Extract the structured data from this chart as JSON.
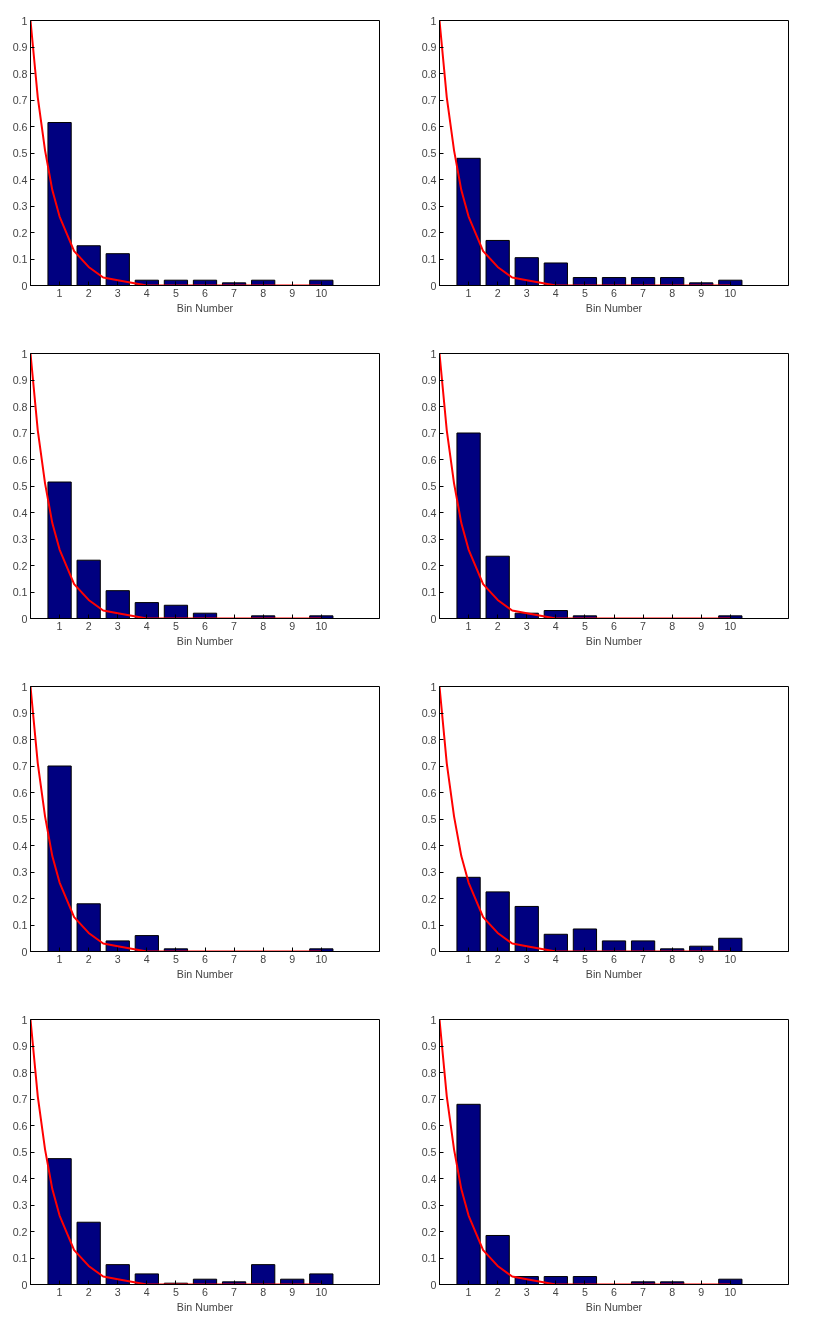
{
  "chart_data": [
    {
      "type": "bar",
      "xlabel": "Bin Number",
      "x": [
        1,
        2,
        3,
        4,
        5,
        6,
        7,
        8,
        9,
        10
      ],
      "xlim": [
        0,
        12
      ],
      "xticks": [
        1,
        2,
        3,
        4,
        5,
        6,
        7,
        8,
        9,
        10
      ],
      "ylim": [
        0,
        1
      ],
      "yticks": [
        0,
        0.1,
        0.2,
        0.3,
        0.4,
        0.5,
        0.6,
        0.7,
        0.8,
        0.9,
        1
      ],
      "series": [
        {
          "color": "#000080",
          "values": [
            0.615,
            0.15,
            0.12,
            0.02,
            0.02,
            0.02,
            0.01,
            0.02,
            0,
            0.02
          ]
        },
        {
          "type": "line",
          "color": "#ff0000",
          "x": [
            0,
            0.25,
            0.5,
            0.75,
            1,
            1.5,
            2,
            2.5,
            3,
            4,
            5,
            6,
            8,
            10
          ],
          "values": [
            1,
            0.71,
            0.51,
            0.36,
            0.26,
            0.13,
            0.07,
            0.03,
            0.02,
            0,
            0,
            0,
            0,
            0
          ]
        }
      ]
    },
    {
      "type": "bar",
      "xlabel": "Bin Number",
      "x": [
        1,
        2,
        3,
        4,
        5,
        6,
        7,
        8,
        9,
        10
      ],
      "xlim": [
        0,
        12
      ],
      "xticks": [
        1,
        2,
        3,
        4,
        5,
        6,
        7,
        8,
        9,
        10
      ],
      "ylim": [
        0,
        1
      ],
      "yticks": [
        0,
        0.1,
        0.2,
        0.3,
        0.4,
        0.5,
        0.6,
        0.7,
        0.8,
        0.9,
        1
      ],
      "series": [
        {
          "color": "#000080",
          "values": [
            0.48,
            0.17,
            0.105,
            0.085,
            0.03,
            0.03,
            0.03,
            0.03,
            0.01,
            0.02
          ]
        },
        {
          "type": "line",
          "color": "#ff0000",
          "x": [
            0,
            0.25,
            0.5,
            0.75,
            1,
            1.5,
            2,
            2.5,
            3,
            4,
            5,
            6,
            8,
            10
          ],
          "values": [
            1,
            0.71,
            0.51,
            0.36,
            0.26,
            0.13,
            0.07,
            0.03,
            0.02,
            0,
            0,
            0,
            0,
            0
          ]
        }
      ]
    },
    {
      "type": "bar",
      "xlabel": "Bin Number",
      "x": [
        1,
        2,
        3,
        4,
        5,
        6,
        7,
        8,
        9,
        10
      ],
      "xlim": [
        0,
        12
      ],
      "xticks": [
        1,
        2,
        3,
        4,
        5,
        6,
        7,
        8,
        9,
        10
      ],
      "ylim": [
        0,
        1
      ],
      "yticks": [
        0,
        0.1,
        0.2,
        0.3,
        0.4,
        0.5,
        0.6,
        0.7,
        0.8,
        0.9,
        1
      ],
      "series": [
        {
          "color": "#000080",
          "values": [
            0.515,
            0.22,
            0.105,
            0.06,
            0.05,
            0.02,
            0,
            0.01,
            0,
            0.01
          ]
        },
        {
          "type": "line",
          "color": "#ff0000",
          "x": [
            0,
            0.25,
            0.5,
            0.75,
            1,
            1.5,
            2,
            2.5,
            3,
            4,
            5,
            6,
            8,
            10
          ],
          "values": [
            1,
            0.71,
            0.51,
            0.36,
            0.26,
            0.13,
            0.07,
            0.03,
            0.02,
            0,
            0,
            0,
            0,
            0
          ]
        }
      ]
    },
    {
      "type": "bar",
      "xlabel": "Bin Number",
      "x": [
        1,
        2,
        3,
        4,
        5,
        6,
        7,
        8,
        9,
        10
      ],
      "xlim": [
        0,
        12
      ],
      "xticks": [
        1,
        2,
        3,
        4,
        5,
        6,
        7,
        8,
        9,
        10
      ],
      "ylim": [
        0,
        1
      ],
      "yticks": [
        0,
        0.1,
        0.2,
        0.3,
        0.4,
        0.5,
        0.6,
        0.7,
        0.8,
        0.9,
        1
      ],
      "series": [
        {
          "color": "#000080",
          "values": [
            0.7,
            0.235,
            0.02,
            0.03,
            0.01,
            0,
            0,
            0,
            0,
            0.01
          ]
        },
        {
          "type": "line",
          "color": "#ff0000",
          "x": [
            0,
            0.25,
            0.5,
            0.75,
            1,
            1.5,
            2,
            2.5,
            3,
            4,
            5,
            6,
            8,
            10
          ],
          "values": [
            1,
            0.71,
            0.51,
            0.36,
            0.26,
            0.13,
            0.07,
            0.03,
            0.02,
            0,
            0,
            0,
            0,
            0
          ]
        }
      ]
    },
    {
      "type": "bar",
      "xlabel": "Bin Number",
      "x": [
        1,
        2,
        3,
        4,
        5,
        6,
        7,
        8,
        9,
        10
      ],
      "xlim": [
        0,
        12
      ],
      "xticks": [
        1,
        2,
        3,
        4,
        5,
        6,
        7,
        8,
        9,
        10
      ],
      "ylim": [
        0,
        1
      ],
      "yticks": [
        0,
        0.1,
        0.2,
        0.3,
        0.4,
        0.5,
        0.6,
        0.7,
        0.8,
        0.9,
        1
      ],
      "series": [
        {
          "color": "#000080",
          "values": [
            0.7,
            0.18,
            0.04,
            0.06,
            0.01,
            0,
            0,
            0,
            0,
            0.01
          ]
        },
        {
          "type": "line",
          "color": "#ff0000",
          "x": [
            0,
            0.25,
            0.5,
            0.75,
            1,
            1.5,
            2,
            2.5,
            3,
            4,
            5,
            6,
            8,
            10
          ],
          "values": [
            1,
            0.71,
            0.51,
            0.36,
            0.26,
            0.13,
            0.07,
            0.03,
            0.02,
            0,
            0,
            0,
            0,
            0
          ]
        }
      ]
    },
    {
      "type": "bar",
      "xlabel": "Bin Number",
      "x": [
        1,
        2,
        3,
        4,
        5,
        6,
        7,
        8,
        9,
        10
      ],
      "xlim": [
        0,
        12
      ],
      "xticks": [
        1,
        2,
        3,
        4,
        5,
        6,
        7,
        8,
        9,
        10
      ],
      "ylim": [
        0,
        1
      ],
      "yticks": [
        0,
        0.1,
        0.2,
        0.3,
        0.4,
        0.5,
        0.6,
        0.7,
        0.8,
        0.9,
        1
      ],
      "series": [
        {
          "color": "#000080",
          "values": [
            0.28,
            0.225,
            0.17,
            0.065,
            0.085,
            0.04,
            0.04,
            0.01,
            0.02,
            0.05
          ]
        },
        {
          "type": "line",
          "color": "#ff0000",
          "x": [
            0,
            0.25,
            0.5,
            0.75,
            1,
            1.5,
            2,
            2.5,
            3,
            4,
            5,
            6,
            8,
            10
          ],
          "values": [
            1,
            0.71,
            0.51,
            0.36,
            0.26,
            0.13,
            0.07,
            0.03,
            0.02,
            0,
            0,
            0,
            0,
            0
          ]
        }
      ]
    },
    {
      "type": "bar",
      "xlabel": "Bin Number",
      "x": [
        1,
        2,
        3,
        4,
        5,
        6,
        7,
        8,
        9,
        10
      ],
      "xlim": [
        0,
        12
      ],
      "xticks": [
        1,
        2,
        3,
        4,
        5,
        6,
        7,
        8,
        9,
        10
      ],
      "ylim": [
        0,
        1
      ],
      "yticks": [
        0,
        0.1,
        0.2,
        0.3,
        0.4,
        0.5,
        0.6,
        0.7,
        0.8,
        0.9,
        1
      ],
      "series": [
        {
          "color": "#000080",
          "values": [
            0.475,
            0.235,
            0.075,
            0.04,
            0.005,
            0.02,
            0.01,
            0.075,
            0.02,
            0.04
          ]
        },
        {
          "type": "line",
          "color": "#ff0000",
          "x": [
            0,
            0.25,
            0.5,
            0.75,
            1,
            1.5,
            2,
            2.5,
            3,
            4,
            5,
            6,
            8,
            10
          ],
          "values": [
            1,
            0.71,
            0.51,
            0.36,
            0.26,
            0.13,
            0.07,
            0.03,
            0.02,
            0,
            0,
            0,
            0,
            0
          ]
        }
      ]
    },
    {
      "type": "bar",
      "xlabel": "Bin Number",
      "x": [
        1,
        2,
        3,
        4,
        5,
        6,
        7,
        8,
        9,
        10
      ],
      "xlim": [
        0,
        12
      ],
      "xticks": [
        1,
        2,
        3,
        4,
        5,
        6,
        7,
        8,
        9,
        10
      ],
      "ylim": [
        0,
        1
      ],
      "yticks": [
        0,
        0.1,
        0.2,
        0.3,
        0.4,
        0.5,
        0.6,
        0.7,
        0.8,
        0.9,
        1
      ],
      "series": [
        {
          "color": "#000080",
          "values": [
            0.68,
            0.185,
            0.03,
            0.03,
            0.03,
            0,
            0.01,
            0.01,
            0,
            0.02
          ]
        },
        {
          "type": "line",
          "color": "#ff0000",
          "x": [
            0,
            0.25,
            0.5,
            0.75,
            1,
            1.5,
            2,
            2.5,
            3,
            4,
            5,
            6,
            8,
            10
          ],
          "values": [
            1,
            0.71,
            0.51,
            0.36,
            0.26,
            0.13,
            0.07,
            0.03,
            0.02,
            0,
            0,
            0,
            0,
            0
          ]
        }
      ]
    }
  ]
}
